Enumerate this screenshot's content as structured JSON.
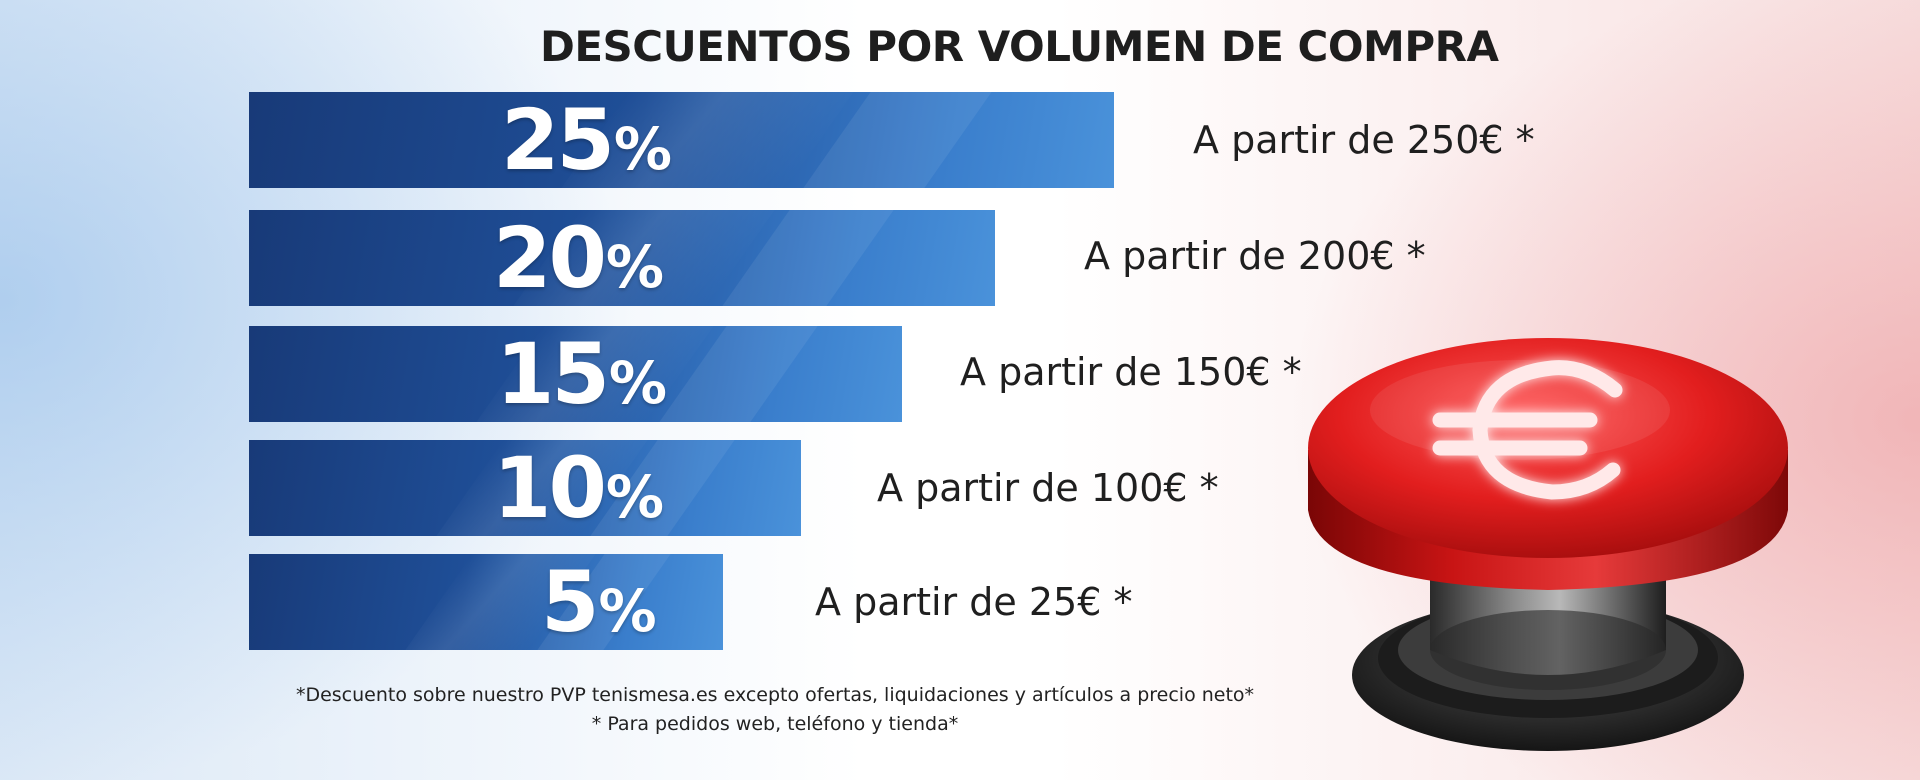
{
  "title": "DESCUENTOS POR VOLUMEN DE COMPRA",
  "tiers": [
    {
      "discount_value": "25",
      "discount_sign": "%",
      "condition": "A partir de 250€ *"
    },
    {
      "discount_value": "20",
      "discount_sign": "%",
      "condition": "A partir de 200€ *"
    },
    {
      "discount_value": "15",
      "discount_sign": "%",
      "condition": "A partir de 150€ *"
    },
    {
      "discount_value": "10",
      "discount_sign": "%",
      "condition": "A partir de 100€ *"
    },
    {
      "discount_value": "5",
      "discount_sign": "%",
      "condition": "A partir de 25€ *"
    }
  ],
  "footnotes": {
    "line1": "*Descuento sobre nuestro PVP tenismesa.es excepto ofertas, liquidaciones y artículos a precio neto*",
    "line2": "* Para pedidos web, teléfono y tienda*"
  },
  "button_icon": "euro-icon",
  "colors": {
    "bar_dark": "#183a78",
    "bar_light": "#4a92da",
    "button_red": "#d41f1f",
    "text": "#1f1f1f"
  }
}
